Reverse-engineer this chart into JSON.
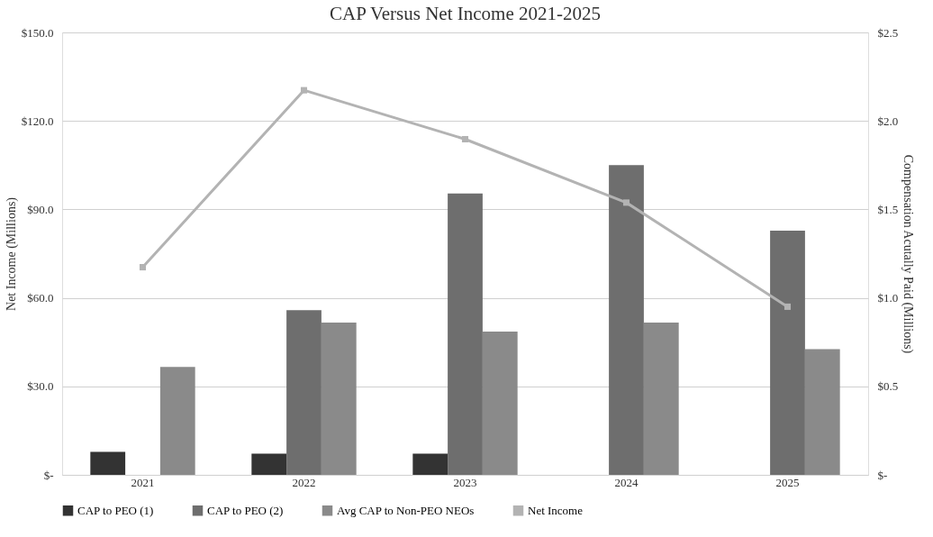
{
  "chart_data": {
    "type": "bar",
    "title": "CAP Versus Net Income 2021-2025",
    "ylabel": "Net Income (Millions)",
    "y2label": "Compensation Acutally Paid (Millions)",
    "categories": [
      "2021",
      "2022",
      "2023",
      "2024",
      "2025"
    ],
    "series": [
      {
        "name": "CAP to PEO (1)",
        "axis": "y2",
        "color": "#333333",
        "values": [
          0.13,
          0.12,
          0.12,
          null,
          null
        ]
      },
      {
        "name": "CAP to PEO (2)",
        "axis": "y2",
        "color": "#6e6e6e",
        "values": [
          null,
          0.93,
          1.59,
          1.75,
          1.38
        ]
      },
      {
        "name": "Avg CAP to Non-PEO NEOs",
        "axis": "y2",
        "color": "#8a8a8a",
        "values": [
          0.61,
          0.86,
          0.81,
          0.86,
          0.71
        ]
      },
      {
        "name": "Net Income",
        "type": "line",
        "axis": "y",
        "color": "#b3b3b3",
        "values": [
          70.4,
          130.4,
          113.8,
          92.3,
          57.0
        ]
      }
    ],
    "ylim": [
      0,
      150
    ],
    "yticks": [
      {
        "value": 0,
        "label": "$-"
      },
      {
        "value": 30,
        "label": "$30.0"
      },
      {
        "value": 60,
        "label": "$60.0"
      },
      {
        "value": 90,
        "label": "$90.0"
      },
      {
        "value": 120,
        "label": "$120.0"
      },
      {
        "value": 150,
        "label": "$150.0"
      }
    ],
    "y2lim": [
      0,
      2.5
    ],
    "y2ticks": [
      {
        "value": 0,
        "label": "$-"
      },
      {
        "value": 0.5,
        "label": "$0.5"
      },
      {
        "value": 1.0,
        "label": "$1.0"
      },
      {
        "value": 1.5,
        "label": "$1.5"
      },
      {
        "value": 2.0,
        "label": "$2.0"
      },
      {
        "value": 2.5,
        "label": "$2.5"
      }
    ],
    "grid": "y",
    "legend": "bottom",
    "marker": "square",
    "line_style": "solid"
  }
}
